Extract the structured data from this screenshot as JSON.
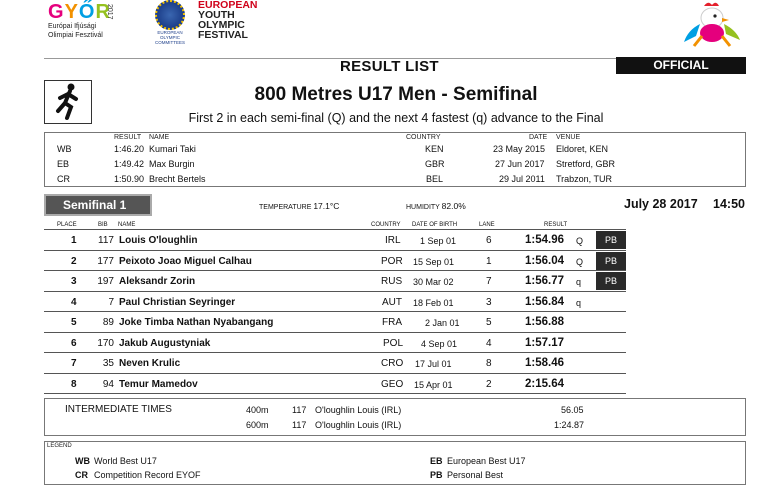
{
  "header": {
    "gyor_letters": [
      "G",
      "Y",
      "Ő",
      "R"
    ],
    "gyor_year": "2017",
    "gyor_sub": [
      "Európai Ifjúsági",
      "Olimpiai Fesztivál"
    ],
    "eoc_text": [
      "EUROPEAN",
      "OLYMPIC",
      "COMMITTEES"
    ],
    "eyof_lines": [
      "EUROPEAN",
      "YOUTH",
      "OLYMPIC",
      "FESTIVAL"
    ]
  },
  "title_bar": {
    "result_list": "RESULT LIST",
    "official": "OFFICIAL"
  },
  "event": {
    "title": "800 Metres U17 Men - Semifinal",
    "subtitle": "First 2 in each semi-final (Q) and the next 4 fastest (q) advance to the Final"
  },
  "records": {
    "headers": {
      "result": "RESULT",
      "name": "NAME",
      "country": "COUNTRY",
      "date": "DATE",
      "venue": "VENUE"
    },
    "rows": [
      {
        "type": "WB",
        "result": "1:46.20",
        "name": "Kumari Taki",
        "country": "KEN",
        "date": "23 May 2015",
        "venue": "Eldoret, KEN"
      },
      {
        "type": "EB",
        "result": "1:49.42",
        "name": "Max Burgin",
        "country": "GBR",
        "date": "27 Jun 2017",
        "venue": "Stretford, GBR"
      },
      {
        "type": "CR",
        "result": "1:50.90",
        "name": "Brecht Bertels",
        "country": "BEL",
        "date": "29 Jul 2011",
        "venue": "Trabzon, TUR"
      }
    ]
  },
  "heat": {
    "label": "Semifinal 1",
    "temperature_label": "TEMPERATURE",
    "temperature": "17.1°C",
    "humidity_label": "HUMIDITY",
    "humidity": "82.0%",
    "date": "July 28 2017",
    "time": "14:50"
  },
  "results": {
    "headers": {
      "place": "PLACE",
      "bib": "BIB",
      "name": "NAME",
      "country": "COUNTRY",
      "dob": "DATE OF BIRTH",
      "lane": "LANE",
      "result": "RESULT"
    },
    "rows": [
      {
        "place": "1",
        "bib": "117",
        "name": "Louis O'loughlin",
        "country": "IRL",
        "dob": "1 Sep 01",
        "lane": "6",
        "result": "1:54.96",
        "q": "Q",
        "pb": "PB"
      },
      {
        "place": "2",
        "bib": "177",
        "name": "Peixoto Joao Miguel Calhau",
        "country": "POR",
        "dob": "15 Sep 01",
        "lane": "1",
        "result": "1:56.04",
        "q": "Q",
        "pb": "PB"
      },
      {
        "place": "3",
        "bib": "197",
        "name": "Aleksandr Zorin",
        "country": "RUS",
        "dob": "30 Mar 02",
        "lane": "7",
        "result": "1:56.77",
        "q": "q",
        "pb": "PB"
      },
      {
        "place": "4",
        "bib": "7",
        "name": "Paul Christian Seyringer",
        "country": "AUT",
        "dob": "18 Feb 01",
        "lane": "3",
        "result": "1:56.84",
        "q": "q",
        "pb": ""
      },
      {
        "place": "5",
        "bib": "89",
        "name": "Joke Timba Nathan Nyabangang",
        "country": "FRA",
        "dob": "2 Jan 01",
        "lane": "5",
        "result": "1:56.88",
        "q": "",
        "pb": ""
      },
      {
        "place": "6",
        "bib": "170",
        "name": "Jakub Augustyniak",
        "country": "POL",
        "dob": "4 Sep 01",
        "lane": "4",
        "result": "1:57.17",
        "q": "",
        "pb": ""
      },
      {
        "place": "7",
        "bib": "35",
        "name": "Neven Krulic",
        "country": "CRO",
        "dob": "17 Jul 01",
        "lane": "8",
        "result": "1:58.46",
        "q": "",
        "pb": ""
      },
      {
        "place": "8",
        "bib": "94",
        "name": "Temur Mamedov",
        "country": "GEO",
        "dob": "15 Apr 01",
        "lane": "2",
        "result": "2:15.64",
        "q": "",
        "pb": ""
      }
    ]
  },
  "intermediate": {
    "label": "INTERMEDIATE TIMES",
    "rows": [
      {
        "distance": "400m",
        "bib": "117",
        "name": "O'loughlin Louis (IRL)",
        "time": "56.05"
      },
      {
        "distance": "600m",
        "bib": "117",
        "name": "O'loughlin Louis (IRL)",
        "time": "1:24.87"
      }
    ]
  },
  "legend": {
    "label": "LEGEND",
    "items": [
      {
        "code": "WB",
        "text": "World Best U17"
      },
      {
        "code": "EB",
        "text": "European Best U17"
      },
      {
        "code": "CR",
        "text": "Competition Record EYOF"
      },
      {
        "code": "PB",
        "text": "Personal Best"
      }
    ]
  }
}
